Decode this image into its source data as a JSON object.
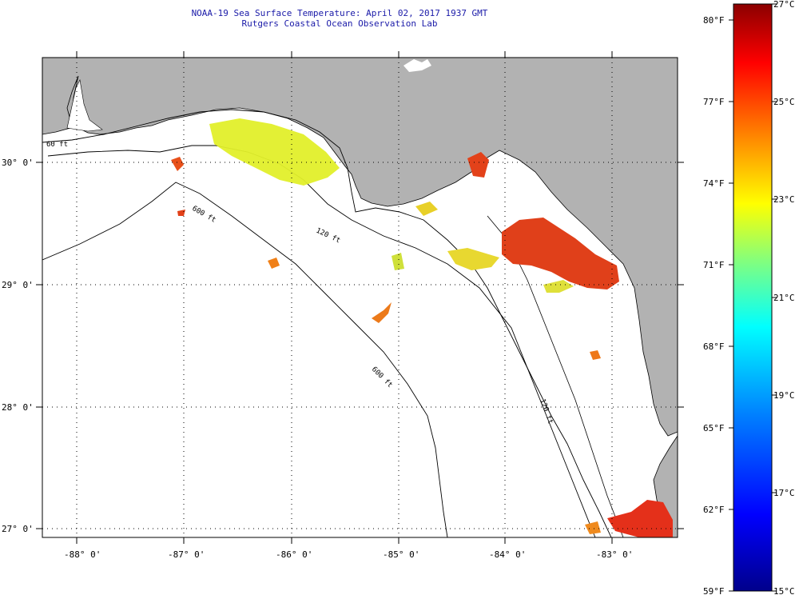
{
  "header": {
    "title": "NOAA-19 Sea Surface Temperature:  April 02, 2017 1937 GMT",
    "subtitle": "Rutgers Coastal Ocean Observation Lab"
  },
  "map": {
    "longitude_labels": [
      "-88° 0'",
      "-87° 0'",
      "-86° 0'",
      "-85° 0'",
      "-84° 0'",
      "-83° 0'"
    ],
    "latitude_labels": [
      "30° 0'",
      "29° 0'",
      "28° 0'",
      "27° 0'"
    ],
    "contour_labels": [
      "60 ft",
      "600 ft",
      "120 ft",
      "600 ft",
      "120 ft"
    ],
    "colors": {
      "land": "#b2b2b2",
      "ocean": "#ffffff",
      "title": "#1a1aa8"
    }
  },
  "colorbar": {
    "fahrenheit_labels": [
      "80°F",
      "77°F",
      "74°F",
      "71°F",
      "68°F",
      "65°F",
      "62°F",
      "59°F"
    ],
    "celsius_labels": [
      "27°C",
      "25°C",
      "23°C",
      "21°C",
      "19°C",
      "17°C",
      "15°C"
    ],
    "range_celsius": [
      15,
      27
    ],
    "colors": [
      "#00008b",
      "#0000ff",
      "#0080ff",
      "#00ffff",
      "#80ff80",
      "#ffff00",
      "#ff8000",
      "#ff0000",
      "#8b0000"
    ]
  }
}
